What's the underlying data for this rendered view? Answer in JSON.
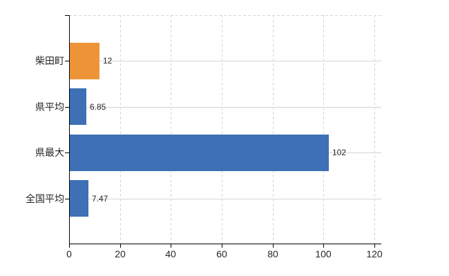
{
  "chart_data": {
    "type": "bar",
    "orientation": "horizontal",
    "title": "",
    "xlabel": "",
    "ylabel": "",
    "categories": [
      "柴田町",
      "県平均",
      "県最大",
      "全国平均"
    ],
    "series": [
      {
        "name": "values",
        "values": [
          12,
          6.85,
          102,
          7.47
        ],
        "value_labels": [
          "12",
          "6.85",
          "102",
          "7.47"
        ]
      }
    ],
    "bar_colors": [
      "#ED9438",
      "#3E70B5",
      "#3E70B5",
      "#3E70B5"
    ],
    "x_ticks": [
      0,
      20,
      40,
      60,
      80,
      100,
      120
    ],
    "xlim": [
      0,
      122.7
    ],
    "grid": true,
    "legend": false
  },
  "colors": {
    "highlight_bar": "#ED9438",
    "default_bar": "#3E70B5",
    "axis": "#000000",
    "gridline_horizontal": "#D4D6D1",
    "gridline_vertical_dashed": "#D8D4D8",
    "text": "#262626",
    "background": "#FFFFFF"
  }
}
